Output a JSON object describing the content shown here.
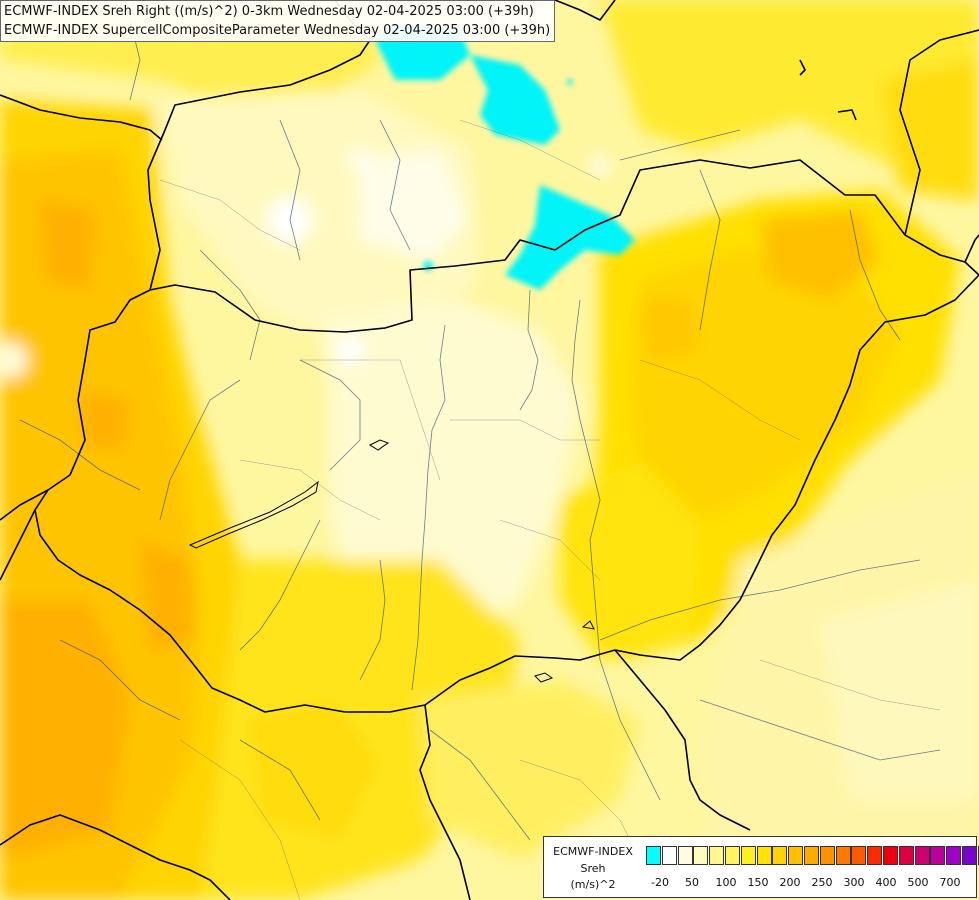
{
  "header": {
    "title_line_1": "ECMWF-INDEX Sreh Right ((m/s)^2) 0-3km Wednesday 02-04-2025 03:00 (+39h)",
    "title_line_2": "ECMWF-INDEX SupercellCompositeParameter Wednesday 02-04-2025 03:00 (+39h)"
  },
  "legend": {
    "source": "ECMWF-INDEX",
    "variable": "Sreh",
    "unit": "(m/s)^2",
    "tick_labels": [
      "-20",
      "50",
      "100",
      "150",
      "200",
      "250",
      "300",
      "400",
      "500",
      "700"
    ],
    "colors": [
      "#00ffff",
      "#ffffff",
      "#fffde0",
      "#fffcc0",
      "#fff890",
      "#fff360",
      "#ffee20",
      "#ffe200",
      "#ffd300",
      "#ffc000",
      "#ffaa00",
      "#ff9200",
      "#ff7a00",
      "#ff5a00",
      "#ff2a00",
      "#ee0010",
      "#dd0040",
      "#cc0070",
      "#bb00a0",
      "#a000cc",
      "#7a00cc",
      "#5500bb",
      "#3000a0",
      "#000080"
    ]
  }
}
